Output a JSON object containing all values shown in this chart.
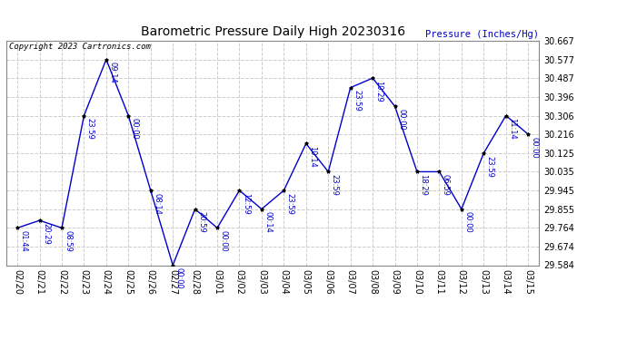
{
  "title": "Barometric Pressure Daily High 20230316",
  "ylabel": "Pressure (Inches/Hg)",
  "copyright": "Copyright 2023 Cartronics.com",
  "line_color": "#0000cc",
  "marker_color": "#000000",
  "background_color": "#ffffff",
  "grid_color": "#cccccc",
  "ylim": [
    29.584,
    30.667
  ],
  "yticks": [
    29.584,
    29.674,
    29.764,
    29.855,
    29.945,
    30.035,
    30.125,
    30.216,
    30.306,
    30.396,
    30.487,
    30.577,
    30.667
  ],
  "points": [
    {
      "date": "02/20",
      "value": 29.764,
      "time": "01:44"
    },
    {
      "date": "02/21",
      "value": 29.8,
      "time": "20:29"
    },
    {
      "date": "02/22",
      "value": 29.764,
      "time": "08:59"
    },
    {
      "date": "02/23",
      "value": 30.306,
      "time": "23:59"
    },
    {
      "date": "02/24",
      "value": 30.577,
      "time": "09:14"
    },
    {
      "date": "02/25",
      "value": 30.306,
      "time": "00:00"
    },
    {
      "date": "02/26",
      "value": 29.945,
      "time": "08:14"
    },
    {
      "date": "02/27",
      "value": 29.584,
      "time": "00:00"
    },
    {
      "date": "02/28",
      "value": 29.855,
      "time": "20:59"
    },
    {
      "date": "03/01",
      "value": 29.764,
      "time": "00:00"
    },
    {
      "date": "03/02",
      "value": 29.945,
      "time": "12:59"
    },
    {
      "date": "03/03",
      "value": 29.855,
      "time": "00:14"
    },
    {
      "date": "03/04",
      "value": 29.945,
      "time": "23:59"
    },
    {
      "date": "03/05",
      "value": 30.171,
      "time": "10:14"
    },
    {
      "date": "03/06",
      "value": 30.035,
      "time": "23:59"
    },
    {
      "date": "03/07",
      "value": 30.441,
      "time": "23:59"
    },
    {
      "date": "03/08",
      "value": 30.487,
      "time": "10:29"
    },
    {
      "date": "03/09",
      "value": 30.351,
      "time": "00:00"
    },
    {
      "date": "03/10",
      "value": 30.035,
      "time": "18:29"
    },
    {
      "date": "03/11",
      "value": 30.035,
      "time": "06:59"
    },
    {
      "date": "03/12",
      "value": 29.855,
      "time": "00:00"
    },
    {
      "date": "03/13",
      "value": 30.125,
      "time": "23:59"
    },
    {
      "date": "03/14",
      "value": 30.306,
      "time": "11:14"
    },
    {
      "date": "03/15",
      "value": 30.216,
      "time": "00:00"
    }
  ]
}
